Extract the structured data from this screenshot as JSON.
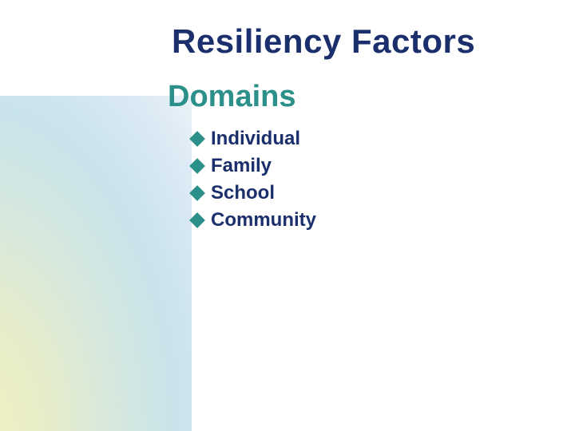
{
  "slide": {
    "title": "Resiliency Factors",
    "title_color": "#1a2f6b",
    "subtitle": "Domains",
    "subtitle_color": "#2b8f8a",
    "bullets": [
      {
        "label": "Individual"
      },
      {
        "label": "Family"
      },
      {
        "label": "School"
      },
      {
        "label": "Community"
      }
    ],
    "bullet_text_color": "#1a2f6b",
    "bullet_diamond_color": "#2b8f8a",
    "background_color": "#ffffff",
    "title_fontsize": 42,
    "subtitle_fontsize": 38,
    "bullet_fontsize": 24,
    "gradient_colors": [
      "#f2f0c0",
      "#d5e8de",
      "#c9e3ec",
      "#ffffff"
    ]
  }
}
